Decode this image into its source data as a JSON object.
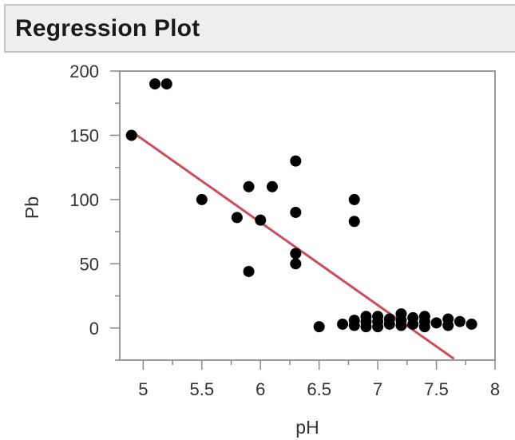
{
  "panel": {
    "title": "Regression Plot"
  },
  "chart_data": {
    "type": "scatter",
    "title": "Regression Plot",
    "xlabel": "pH",
    "ylabel": "Pb",
    "xlim": [
      4.8,
      8.0
    ],
    "ylim": [
      -25,
      200
    ],
    "x_ticks": [
      5,
      5.5,
      6,
      6.5,
      7,
      7.5,
      8
    ],
    "x_tick_labels": [
      "5",
      "5.5",
      "6",
      "6.5",
      "7",
      "7.5",
      "8"
    ],
    "y_ticks": [
      0,
      50,
      100,
      150,
      200
    ],
    "y_tick_labels": [
      "0",
      "50",
      "100",
      "150",
      "200"
    ],
    "grid": false,
    "series": [
      {
        "points": [
          [
            4.9,
            150
          ],
          [
            5.1,
            190
          ],
          [
            5.2,
            190
          ],
          [
            5.5,
            100
          ],
          [
            5.8,
            86
          ],
          [
            5.9,
            110
          ],
          [
            5.9,
            44
          ],
          [
            6.0,
            84
          ],
          [
            6.1,
            110
          ],
          [
            6.3,
            130
          ],
          [
            6.3,
            90
          ],
          [
            6.3,
            58
          ],
          [
            6.3,
            50
          ],
          [
            6.5,
            1
          ],
          [
            6.7,
            3
          ],
          [
            6.8,
            100
          ],
          [
            6.8,
            83
          ],
          [
            6.8,
            6
          ],
          [
            6.8,
            2
          ],
          [
            6.9,
            9
          ],
          [
            6.9,
            5
          ],
          [
            6.9,
            1
          ],
          [
            7.0,
            9
          ],
          [
            7.0,
            5
          ],
          [
            7.0,
            1
          ],
          [
            7.1,
            7
          ],
          [
            7.1,
            3
          ],
          [
            7.2,
            11
          ],
          [
            7.2,
            6
          ],
          [
            7.2,
            2
          ],
          [
            7.3,
            8
          ],
          [
            7.3,
            3
          ],
          [
            7.4,
            9
          ],
          [
            7.4,
            5
          ],
          [
            7.4,
            1
          ],
          [
            7.5,
            4
          ],
          [
            7.6,
            7
          ],
          [
            7.6,
            2
          ],
          [
            7.7,
            5
          ],
          [
            7.8,
            3
          ]
        ],
        "color": "#000000"
      }
    ],
    "fit_line": {
      "x": [
        4.9,
        7.65
      ],
      "y": [
        153,
        -24
      ],
      "color": "#cc4e5c"
    }
  }
}
